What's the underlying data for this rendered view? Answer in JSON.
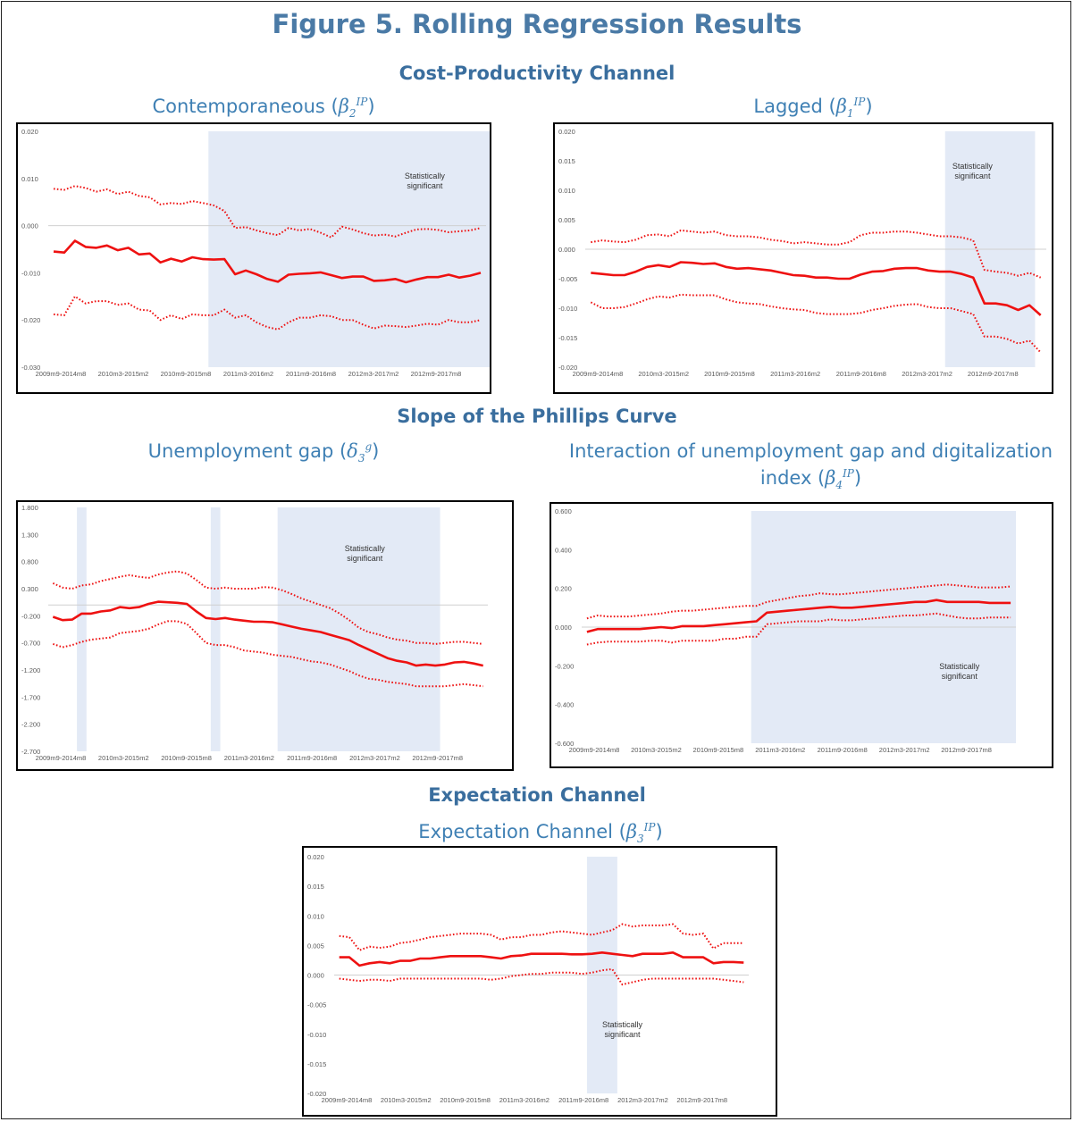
{
  "figure_title": "Figure 5. Rolling Regression Results",
  "sections": {
    "cost_productivity": "Cost-Productivity Channel",
    "phillips": "Slope of the Phillips Curve",
    "expectation": "Expectation Channel"
  },
  "subtitles": {
    "c1": {
      "text": "Contemporaneous (",
      "sym": "β",
      "sub": "2",
      "sup": "IP",
      "close": ")"
    },
    "c2": {
      "text": "Lagged (",
      "sym": "β",
      "sub": "1",
      "sup": "IP",
      "close": ")"
    },
    "c3": {
      "text": "Unemployment gap (",
      "sym": "δ",
      "sub": "3",
      "sup": "g",
      "close": ")"
    },
    "c4a": "Interaction of unemployment gap and digitalization",
    "c4b": {
      "text": "index (",
      "sym": "β",
      "sub": "4",
      "sup": "IP",
      "close": ")"
    },
    "c5": {
      "text": "Expectation Channel (",
      "sym": "β",
      "sub": "3",
      "sup": "IP",
      "close": ")"
    }
  },
  "colors": {
    "line": "#ee1111",
    "shade": "#e3eaf6",
    "zero": "#d0d0d0",
    "tick": "#595959"
  },
  "chart_data": [
    {
      "id": "contemporaneous",
      "type": "line",
      "x_labels": [
        "2009m9-2014m8",
        "2010m3-2015m2",
        "2010m9-2015m8",
        "2011m3-2016m2",
        "2011m9-2016m8",
        "2012m3-2017m2",
        "2012m9-2017m8"
      ],
      "y_ticks": [
        "0.020",
        "0.010",
        "0.000",
        "-0.010",
        "-0.020",
        "-0.030"
      ],
      "ylim": [
        -0.03,
        0.02
      ],
      "annotation": [
        "Statistically",
        "significant"
      ],
      "shade": [
        [
          15,
          45
        ]
      ],
      "series": [
        {
          "style": "solid",
          "values": [
            -0.0055,
            -0.0057,
            -0.0032,
            -0.0045,
            -0.0047,
            -0.0042,
            -0.0052,
            -0.0047,
            -0.0061,
            -0.0059,
            -0.0078,
            -0.007,
            -0.0076,
            -0.0067,
            -0.0071,
            -0.0072,
            -0.0071,
            -0.0103,
            -0.0095,
            -0.0103,
            -0.0113,
            -0.0119,
            -0.0104,
            -0.0102,
            -0.0101,
            -0.0099,
            -0.0105,
            -0.0111,
            -0.0108,
            -0.0108,
            -0.0117,
            -0.0116,
            -0.0113,
            -0.012,
            -0.0114,
            -0.0109,
            -0.0109,
            -0.0104,
            -0.011,
            -0.0106,
            -0.01
          ]
        },
        {
          "style": "dotted",
          "values": [
            0.0078,
            0.0076,
            0.0084,
            0.008,
            0.0072,
            0.0077,
            0.0067,
            0.0072,
            0.0063,
            0.006,
            0.0045,
            0.0048,
            0.0046,
            0.0052,
            0.0048,
            0.0043,
            0.0031,
            -0.0005,
            -0.0003,
            -0.001,
            -0.0016,
            -0.002,
            -0.0005,
            -0.001,
            -0.0007,
            -0.0015,
            -0.0025,
            -0.0002,
            -0.0008,
            -0.0016,
            -0.0021,
            -0.0019,
            -0.0023,
            -0.0015,
            -0.0008,
            -0.0007,
            -0.0009,
            -0.0014,
            -0.0012,
            -0.001,
            -0.0005
          ]
        },
        {
          "style": "dotted",
          "values": [
            -0.0188,
            -0.019,
            -0.015,
            -0.0165,
            -0.016,
            -0.016,
            -0.0168,
            -0.0165,
            -0.0178,
            -0.018,
            -0.02,
            -0.019,
            -0.0198,
            -0.0188,
            -0.019,
            -0.019,
            -0.0178,
            -0.0195,
            -0.019,
            -0.0205,
            -0.0215,
            -0.022,
            -0.0205,
            -0.0195,
            -0.0195,
            -0.019,
            -0.0192,
            -0.02,
            -0.02,
            -0.021,
            -0.0218,
            -0.0212,
            -0.0213,
            -0.0215,
            -0.0212,
            -0.0208,
            -0.021,
            -0.02,
            -0.0205,
            -0.0205,
            -0.02
          ]
        }
      ]
    },
    {
      "id": "lagged",
      "type": "line",
      "x_labels": [
        "2009m9-2014m8",
        "2010m3-2015m2",
        "2010m9-2015m8",
        "2011m3-2016m2",
        "2011m9-2016m8",
        "2012m3-2017m2",
        "2012m9-2017m8"
      ],
      "y_ticks": [
        "0.020",
        "0.015",
        "0.010",
        "0.005",
        "0.000",
        "-0.005",
        "-0.010",
        "-0.015",
        "-0.020"
      ],
      "ylim": [
        -0.02,
        0.02
      ],
      "annotation": [
        "Statistically",
        "significant"
      ],
      "shade": [
        [
          32,
          40
        ]
      ],
      "series": [
        {
          "style": "solid",
          "values": [
            -0.004,
            -0.0042,
            -0.0044,
            -0.0044,
            -0.0038,
            -0.003,
            -0.0027,
            -0.003,
            -0.0022,
            -0.0023,
            -0.0025,
            -0.0024,
            -0.003,
            -0.0033,
            -0.0032,
            -0.0034,
            -0.0036,
            -0.004,
            -0.0044,
            -0.0045,
            -0.0048,
            -0.0048,
            -0.005,
            -0.005,
            -0.0043,
            -0.0038,
            -0.0037,
            -0.0033,
            -0.0032,
            -0.0032,
            -0.0036,
            -0.0038,
            -0.0038,
            -0.0042,
            -0.0048,
            -0.0092,
            -0.0092,
            -0.0095,
            -0.0103,
            -0.0095,
            -0.0112
          ]
        },
        {
          "style": "dotted",
          "values": [
            0.0012,
            0.0015,
            0.0013,
            0.0012,
            0.0016,
            0.0024,
            0.0025,
            0.0022,
            0.0032,
            0.003,
            0.0028,
            0.003,
            0.0024,
            0.0022,
            0.0022,
            0.002,
            0.0016,
            0.0014,
            0.001,
            0.0012,
            0.001,
            0.0008,
            0.0008,
            0.0012,
            0.0024,
            0.0028,
            0.0028,
            0.003,
            0.003,
            0.0028,
            0.0025,
            0.0022,
            0.0022,
            0.002,
            0.0015,
            -0.0035,
            -0.0038,
            -0.004,
            -0.0045,
            -0.004,
            -0.0048
          ]
        },
        {
          "style": "dotted",
          "values": [
            -0.009,
            -0.01,
            -0.01,
            -0.0098,
            -0.0092,
            -0.0085,
            -0.008,
            -0.0082,
            -0.0077,
            -0.0078,
            -0.0078,
            -0.0078,
            -0.0085,
            -0.009,
            -0.0092,
            -0.0093,
            -0.0097,
            -0.01,
            -0.0102,
            -0.0103,
            -0.0108,
            -0.011,
            -0.011,
            -0.011,
            -0.0108,
            -0.0103,
            -0.01,
            -0.0096,
            -0.0094,
            -0.0093,
            -0.0098,
            -0.01,
            -0.01,
            -0.0105,
            -0.011,
            -0.0148,
            -0.0148,
            -0.0152,
            -0.016,
            -0.0155,
            -0.0175
          ]
        }
      ]
    },
    {
      "id": "unemployment_gap",
      "type": "line",
      "x_labels": [
        "2009m9-2014m8",
        "2010m3-2015m2",
        "2010m9-2015m8",
        "2011m3-2016m2",
        "2011m9-2016m8",
        "2012m3-2017m2",
        "2012m9-2017m8"
      ],
      "y_ticks": [
        "1.800",
        "1.300",
        "0.800",
        "0.300",
        "-0.200",
        "-0.700",
        "-1.200",
        "-1.700",
        "-2.200",
        "-2.700"
      ],
      "ylim": [
        -2.7,
        1.8
      ],
      "annotation": [
        "Statistically",
        "significant"
      ],
      "shade": [
        [
          3,
          4
        ],
        [
          17,
          18
        ],
        [
          24,
          41
        ]
      ],
      "series": [
        {
          "style": "solid",
          "values": [
            -0.22,
            -0.28,
            -0.27,
            -0.16,
            -0.16,
            -0.12,
            -0.1,
            -0.04,
            -0.06,
            -0.04,
            0.02,
            0.06,
            0.05,
            0.04,
            0.02,
            -0.12,
            -0.24,
            -0.26,
            -0.24,
            -0.27,
            -0.29,
            -0.31,
            -0.31,
            -0.32,
            -0.36,
            -0.4,
            -0.44,
            -0.47,
            -0.5,
            -0.55,
            -0.6,
            -0.65,
            -0.74,
            -0.82,
            -0.9,
            -0.98,
            -1.03,
            -1.06,
            -1.12,
            -1.1,
            -1.12,
            -1.1,
            -1.06,
            -1.05,
            -1.08,
            -1.12
          ]
        },
        {
          "style": "dotted",
          "values": [
            0.4,
            0.32,
            0.3,
            0.36,
            0.38,
            0.44,
            0.48,
            0.52,
            0.55,
            0.52,
            0.5,
            0.56,
            0.6,
            0.62,
            0.58,
            0.46,
            0.32,
            0.3,
            0.32,
            0.3,
            0.3,
            0.3,
            0.33,
            0.32,
            0.27,
            0.2,
            0.12,
            0.06,
            0.0,
            -0.06,
            -0.16,
            -0.28,
            -0.42,
            -0.5,
            -0.54,
            -0.6,
            -0.64,
            -0.66,
            -0.7,
            -0.7,
            -0.72,
            -0.7,
            -0.68,
            -0.68,
            -0.7,
            -0.72
          ]
        },
        {
          "style": "dotted",
          "values": [
            -0.72,
            -0.78,
            -0.74,
            -0.68,
            -0.64,
            -0.62,
            -0.6,
            -0.52,
            -0.5,
            -0.48,
            -0.44,
            -0.36,
            -0.3,
            -0.3,
            -0.35,
            -0.52,
            -0.7,
            -0.74,
            -0.74,
            -0.78,
            -0.84,
            -0.86,
            -0.88,
            -0.92,
            -0.94,
            -0.96,
            -1.0,
            -1.04,
            -1.06,
            -1.1,
            -1.16,
            -1.22,
            -1.3,
            -1.36,
            -1.38,
            -1.42,
            -1.44,
            -1.46,
            -1.5,
            -1.5,
            -1.5,
            -1.5,
            -1.48,
            -1.46,
            -1.48,
            -1.5
          ]
        }
      ]
    },
    {
      "id": "interaction",
      "type": "line",
      "x_labels": [
        "2009m9-2014m8",
        "2010m3-2015m2",
        "2010m9-2015m8",
        "2011m3-2016m2",
        "2011m9-2016m8",
        "2012m3-2017m2",
        "2012m9-2017m8"
      ],
      "y_ticks": [
        "0.600",
        "0.400",
        "0.200",
        "0.000",
        "-0.200",
        "-0.400",
        "-0.600"
      ],
      "ylim": [
        -0.6,
        0.6
      ],
      "annotation": [
        "Statistically",
        "significant"
      ],
      "shade": [
        [
          16,
          41
        ]
      ],
      "series": [
        {
          "style": "solid",
          "values": [
            -0.025,
            -0.01,
            -0.01,
            -0.01,
            -0.01,
            -0.01,
            -0.005,
            0.0,
            -0.005,
            0.005,
            0.005,
            0.005,
            0.01,
            0.015,
            0.02,
            0.025,
            0.03,
            0.075,
            0.08,
            0.085,
            0.09,
            0.095,
            0.1,
            0.105,
            0.1,
            0.1,
            0.105,
            0.11,
            0.115,
            0.12,
            0.125,
            0.13,
            0.13,
            0.14,
            0.13,
            0.13,
            0.13,
            0.13,
            0.125,
            0.125,
            0.125
          ]
        },
        {
          "style": "dotted",
          "values": [
            0.045,
            0.06,
            0.055,
            0.055,
            0.055,
            0.06,
            0.065,
            0.07,
            0.08,
            0.085,
            0.085,
            0.09,
            0.095,
            0.1,
            0.105,
            0.11,
            0.11,
            0.13,
            0.14,
            0.15,
            0.16,
            0.165,
            0.175,
            0.17,
            0.17,
            0.175,
            0.18,
            0.185,
            0.19,
            0.195,
            0.2,
            0.205,
            0.21,
            0.215,
            0.22,
            0.215,
            0.21,
            0.205,
            0.205,
            0.205,
            0.21
          ]
        },
        {
          "style": "dotted",
          "values": [
            -0.09,
            -0.08,
            -0.075,
            -0.075,
            -0.075,
            -0.075,
            -0.07,
            -0.07,
            -0.08,
            -0.07,
            -0.07,
            -0.07,
            -0.07,
            -0.06,
            -0.06,
            -0.05,
            -0.05,
            0.015,
            0.02,
            0.025,
            0.03,
            0.03,
            0.03,
            0.04,
            0.035,
            0.035,
            0.04,
            0.045,
            0.05,
            0.055,
            0.06,
            0.06,
            0.065,
            0.07,
            0.06,
            0.05,
            0.045,
            0.045,
            0.05,
            0.05,
            0.05
          ]
        }
      ]
    },
    {
      "id": "expectation",
      "type": "line",
      "x_labels": [
        "2009m9-2014m8",
        "2010m3-2015m2",
        "2010m9-2015m8",
        "2011m3-2016m2",
        "2011m9-2016m8",
        "2012m3-2017m2",
        "2012m9-2017m8"
      ],
      "y_ticks": [
        "0.020",
        "0.015",
        "0.010",
        "0.005",
        "0.000",
        "-0.005",
        "-0.010",
        "-0.015",
        "-0.020"
      ],
      "ylim": [
        -0.02,
        0.02
      ],
      "annotation": [
        "Statistically",
        "significant"
      ],
      "shade": [
        [
          25,
          28
        ]
      ],
      "series": [
        {
          "style": "solid",
          "values": [
            0.003,
            0.003,
            0.0016,
            0.002,
            0.0022,
            0.002,
            0.0024,
            0.0024,
            0.0028,
            0.0028,
            0.003,
            0.0032,
            0.0032,
            0.0032,
            0.0032,
            0.003,
            0.0028,
            0.0032,
            0.0033,
            0.0036,
            0.0036,
            0.0036,
            0.0036,
            0.0035,
            0.0035,
            0.0036,
            0.0038,
            0.0036,
            0.0034,
            0.0032,
            0.0036,
            0.0036,
            0.0036,
            0.0038,
            0.003,
            0.003,
            0.003,
            0.002,
            0.0022,
            0.0022,
            0.0021
          ]
        },
        {
          "style": "dotted",
          "values": [
            0.0066,
            0.0064,
            0.0042,
            0.0048,
            0.0046,
            0.0048,
            0.0054,
            0.0056,
            0.006,
            0.0064,
            0.0066,
            0.0068,
            0.007,
            0.007,
            0.007,
            0.0068,
            0.006,
            0.0064,
            0.0064,
            0.0068,
            0.0068,
            0.0072,
            0.0074,
            0.0072,
            0.007,
            0.0068,
            0.0072,
            0.0076,
            0.0086,
            0.0082,
            0.0084,
            0.0084,
            0.0084,
            0.0086,
            0.007,
            0.0068,
            0.007,
            0.0045,
            0.0054,
            0.0054,
            0.0054
          ]
        },
        {
          "style": "dotted",
          "values": [
            -0.0006,
            -0.0008,
            -0.001,
            -0.0008,
            -0.0008,
            -0.001,
            -0.0006,
            -0.0006,
            -0.0006,
            -0.0006,
            -0.0006,
            -0.0006,
            -0.0006,
            -0.0006,
            -0.0006,
            -0.0008,
            -0.0006,
            -0.0002,
            0.0,
            0.0002,
            0.0002,
            0.0004,
            0.0004,
            0.0004,
            0.0002,
            0.0004,
            0.0008,
            0.001,
            -0.0016,
            -0.0012,
            -0.0008,
            -0.0006,
            -0.0006,
            -0.0006,
            -0.0006,
            -0.0006,
            -0.0006,
            -0.0006,
            -0.0008,
            -0.001,
            -0.0012
          ]
        }
      ]
    }
  ]
}
